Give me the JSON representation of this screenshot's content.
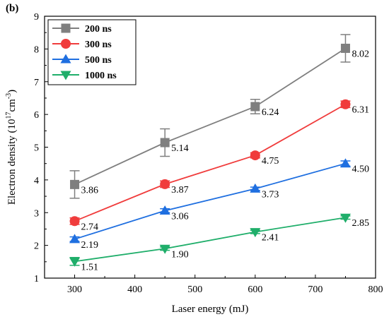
{
  "panel_label": "(b)",
  "chart_data": {
    "type": "line",
    "xlabel": "Laser energy (mJ)",
    "ylabel_main": "Electron density (10",
    "ylabel_exp1": "17",
    "ylabel_mid": "cm",
    "ylabel_exp2": "-3",
    "ylabel_end": ")",
    "xlim": [
      250,
      800
    ],
    "ylim": [
      1,
      9
    ],
    "xticks": [
      300,
      400,
      500,
      600,
      700,
      800
    ],
    "yticks": [
      1,
      2,
      3,
      4,
      5,
      6,
      7,
      8,
      9
    ],
    "grid": false,
    "legend_position": "top-left",
    "x": [
      300,
      450,
      600,
      750
    ],
    "series": [
      {
        "name": "200 ns",
        "color": "#7f7f7f",
        "marker": "square",
        "values": [
          3.86,
          5.14,
          6.24,
          8.02
        ],
        "errors": [
          0.42,
          0.42,
          0.22,
          0.42
        ],
        "labels": [
          "3.86",
          "5.14",
          "6.24",
          "8.02"
        ]
      },
      {
        "name": "300 ns",
        "color": "#f03c3c",
        "marker": "circle",
        "values": [
          2.74,
          3.87,
          4.75,
          6.31
        ],
        "errors": [
          0.1,
          0.1,
          0.08,
          0.1
        ],
        "labels": [
          "2.74",
          "3.87",
          "4.75",
          "6.31"
        ]
      },
      {
        "name": "500 ns",
        "color": "#1f6fe0",
        "marker": "triangle-up",
        "values": [
          2.19,
          3.06,
          3.73,
          4.5
        ],
        "errors": [
          0.07,
          0.06,
          0.05,
          0.08
        ],
        "labels": [
          "2.19",
          "3.06",
          "3.73",
          "4.50"
        ]
      },
      {
        "name": "1000 ns",
        "color": "#1fae6a",
        "marker": "triangle-down",
        "values": [
          1.51,
          1.9,
          2.41,
          2.85
        ],
        "errors": [
          0.12,
          0.05,
          0.05,
          0.05
        ],
        "labels": [
          "1.51",
          "1.90",
          "2.41",
          "2.85"
        ]
      }
    ]
  }
}
